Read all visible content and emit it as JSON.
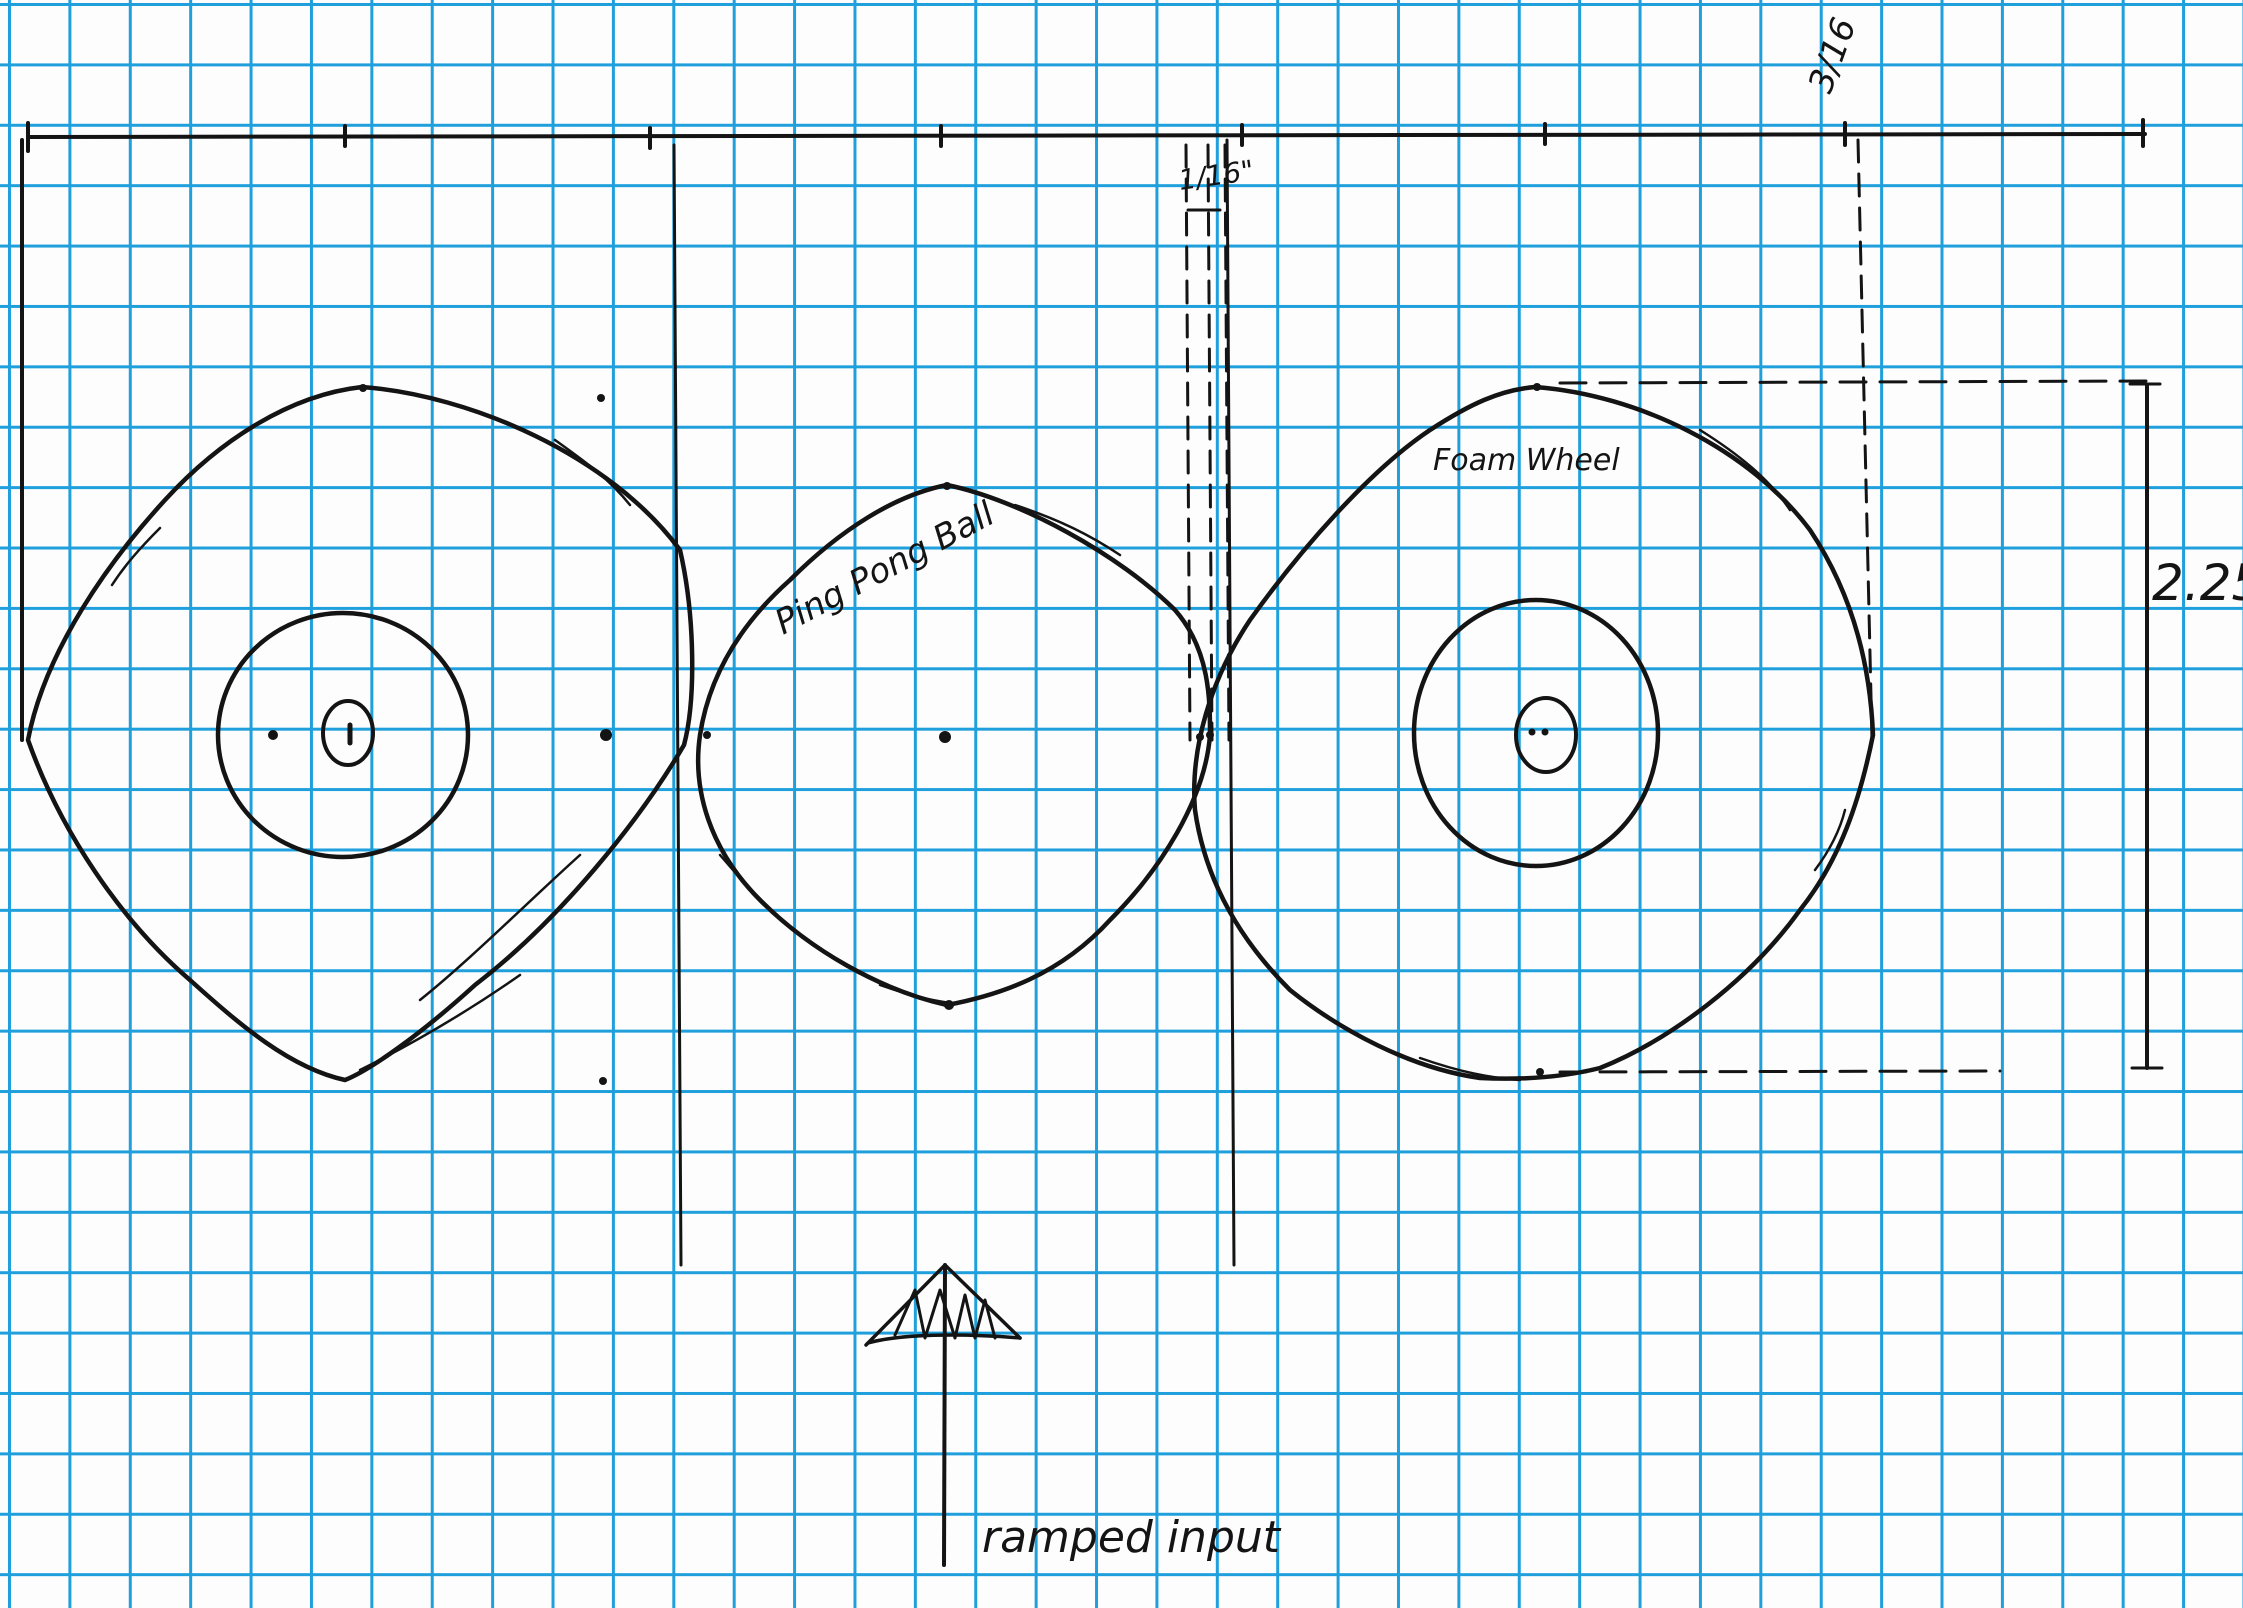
{
  "labels": {
    "ping_pong_ball": "Ping Pong Ball",
    "foam_wheel": "Foam Wheel",
    "ramped_input": "ramped input"
  },
  "dimensions": {
    "gap": "1/16\"",
    "offset": "3/16",
    "height": "2.25"
  },
  "colors": {
    "grid_line": "#1fa0dc",
    "paper": "#fdfdfd",
    "ink": "#141414"
  }
}
